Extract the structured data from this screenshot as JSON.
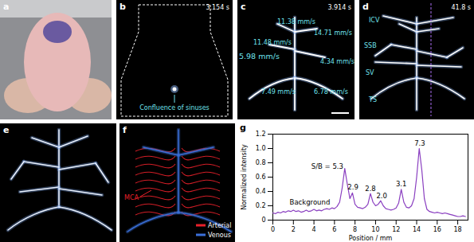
{
  "panels": [
    {
      "letter": "a"
    },
    {
      "letter": "b",
      "time": "3.154 s",
      "labels": [
        "Confluence of sinuses"
      ]
    },
    {
      "letter": "c",
      "time": "3.914 s",
      "labels": [
        "11.38 mm/s",
        "14.71 mm/s",
        "11.48 mm/s",
        "5.98 mm/s",
        "4.34 mm/s",
        "7.49 mm/s",
        "6.78 mm/s"
      ]
    },
    {
      "letter": "d",
      "time": "41.8 s",
      "labels": [
        "ICV",
        "SSB",
        "SV",
        "TS"
      ]
    },
    {
      "letter": "e"
    },
    {
      "letter": "f",
      "labels": [
        "MCA"
      ],
      "legend": [
        {
          "name": "Arterial",
          "color": "#e8202a"
        },
        {
          "name": "Venous",
          "color": "#3a6fd8"
        }
      ]
    },
    {
      "letter": "g"
    }
  ],
  "chart_data": {
    "type": "line",
    "x_label": "Position / mm",
    "y_label": "Normalized intensity",
    "color": "#8a3fc0",
    "x": [
      0,
      0.25,
      0.5,
      0.75,
      1,
      1.25,
      1.5,
      1.75,
      2,
      2.25,
      2.5,
      2.75,
      3,
      3.25,
      3.5,
      3.75,
      4,
      4.25,
      4.5,
      4.75,
      5,
      5.25,
      5.5,
      5.75,
      6,
      6.25,
      6.5,
      6.75,
      7,
      7.25,
      7.5,
      7.75,
      8,
      8.25,
      8.5,
      8.75,
      9,
      9.25,
      9.5,
      9.75,
      10,
      10.25,
      10.5,
      10.75,
      11,
      11.25,
      11.5,
      11.75,
      12,
      12.25,
      12.5,
      12.75,
      13,
      13.25,
      13.5,
      13.75,
      14,
      14.25,
      14.5,
      14.75,
      15,
      15.25,
      15.5,
      15.75,
      16,
      16.25,
      16.5,
      16.75,
      17,
      17.25,
      17.5,
      17.75,
      18,
      18.25,
      18.5,
      18.75
    ],
    "values": [
      0.1,
      0.09,
      0.11,
      0.1,
      0.12,
      0.11,
      0.13,
      0.12,
      0.14,
      0.12,
      0.13,
      0.11,
      0.12,
      0.14,
      0.12,
      0.13,
      0.15,
      0.13,
      0.14,
      0.13,
      0.15,
      0.16,
      0.15,
      0.17,
      0.16,
      0.19,
      0.25,
      0.45,
      0.72,
      0.5,
      0.3,
      0.38,
      0.22,
      0.18,
      0.17,
      0.16,
      0.18,
      0.22,
      0.37,
      0.25,
      0.2,
      0.22,
      0.27,
      0.2,
      0.16,
      0.15,
      0.14,
      0.15,
      0.17,
      0.24,
      0.43,
      0.25,
      0.18,
      0.17,
      0.2,
      0.3,
      0.6,
      1.0,
      0.7,
      0.3,
      0.15,
      0.12,
      0.11,
      0.1,
      0.11,
      0.1,
      0.09,
      0.1,
      0.09,
      0.08,
      0.07,
      0.06,
      0.05,
      0.05,
      0.06,
      0.05
    ],
    "xlim": [
      0,
      19
    ],
    "xticks": [
      0,
      2,
      4,
      6,
      8,
      10,
      12,
      14,
      16,
      18
    ],
    "ylim": [
      0,
      1.2
    ],
    "yticks": [
      0,
      0.2,
      0.4,
      0.6,
      0.8,
      {
        "value": 1,
        "label": "1.0"
      },
      1.2
    ],
    "annotations": [
      {
        "text": "S/B = 5.3",
        "x": 5.3,
        "y": 0.75
      },
      {
        "text": "2.9",
        "x": 7.8,
        "y": 0.46
      },
      {
        "text": "2.8",
        "x": 9.5,
        "y": 0.44
      },
      {
        "text": "2.0",
        "x": 10.6,
        "y": 0.34
      },
      {
        "text": "3.1",
        "x": 12.5,
        "y": 0.5
      },
      {
        "text": "7.3",
        "x": 14.3,
        "y": 1.07
      },
      {
        "text": "Background",
        "x": 3.6,
        "y": 0.25
      }
    ]
  }
}
